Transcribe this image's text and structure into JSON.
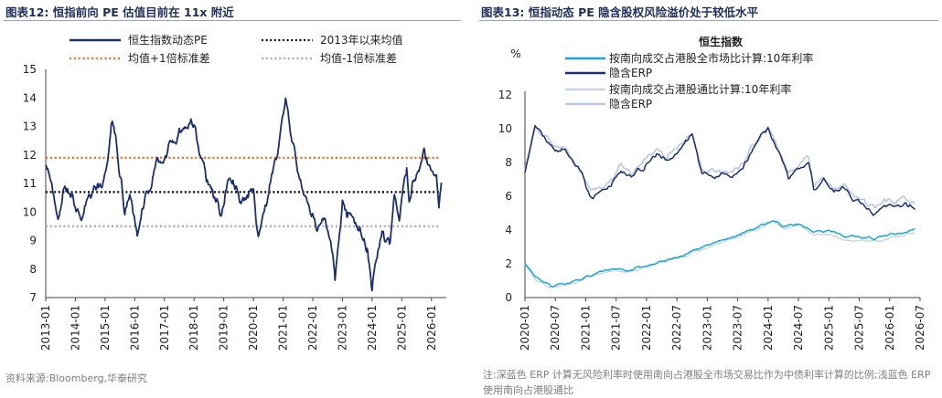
{
  "left": {
    "fig_title": "图表12:  恒指前向 PE 估值目前在 11x 附近",
    "source": "资料来源:Bloomberg,华泰研究"
  },
  "right": {
    "fig_title": "图表13:  恒指动态 PE 隐含股权风险溢价处于较低水平",
    "note": "注:深蓝色 ERP 计算无风险利率时使用南向占港股全市场交易比作为中债利率计算的比例;浅蓝色 ERP 使用南向占港股通比"
  },
  "chart_data": [
    {
      "type": "line",
      "title": "",
      "xlabel": "",
      "ylabel": "",
      "ylim": [
        7,
        15
      ],
      "yticks": [
        7,
        8,
        9,
        10,
        11,
        12,
        13,
        14,
        15
      ],
      "xticks": [
        "2013-01",
        "2014-01",
        "2015-01",
        "2016-01",
        "2017-01",
        "2018-01",
        "2019-01",
        "2020-01",
        "2021-01",
        "2022-01",
        "2023-01",
        "2024-01",
        "2025-01",
        "2026-01"
      ],
      "legend_position": "top",
      "series": [
        {
          "name": "恒生指数动态PE",
          "color": "#1b2f6e",
          "points": [
            [
              "2013-01",
              11.9
            ],
            [
              "2013-03",
              11.2
            ],
            [
              "2013-06",
              9.6
            ],
            [
              "2013-08",
              10.6
            ],
            [
              "2013-10",
              10.9
            ],
            [
              "2014-01",
              10.2
            ],
            [
              "2014-03",
              9.8
            ],
            [
              "2014-06",
              10.4
            ],
            [
              "2014-09",
              10.8
            ],
            [
              "2014-12",
              11.0
            ],
            [
              "2015-02",
              11.6
            ],
            [
              "2015-04",
              13.3
            ],
            [
              "2015-05",
              12.8
            ],
            [
              "2015-07",
              11.3
            ],
            [
              "2015-09",
              10.0
            ],
            [
              "2015-11",
              10.6
            ],
            [
              "2016-02",
              9.1
            ],
            [
              "2016-04",
              10.2
            ],
            [
              "2016-07",
              10.8
            ],
            [
              "2016-10",
              11.8
            ],
            [
              "2016-12",
              11.6
            ],
            [
              "2017-03",
              12.3
            ],
            [
              "2017-06",
              12.6
            ],
            [
              "2017-09",
              12.9
            ],
            [
              "2017-11",
              13.0
            ],
            [
              "2018-01",
              13.2
            ],
            [
              "2018-03",
              12.1
            ],
            [
              "2018-06",
              11.3
            ],
            [
              "2018-09",
              10.6
            ],
            [
              "2018-12",
              9.9
            ],
            [
              "2019-03",
              11.2
            ],
            [
              "2019-05",
              11.0
            ],
            [
              "2019-08",
              10.3
            ],
            [
              "2019-11",
              10.6
            ],
            [
              "2020-01",
              10.8
            ],
            [
              "2020-03",
              9.0
            ],
            [
              "2020-05",
              9.8
            ],
            [
              "2020-08",
              11.1
            ],
            [
              "2020-11",
              12.1
            ],
            [
              "2021-01",
              13.4
            ],
            [
              "2021-02",
              14.0
            ],
            [
              "2021-04",
              12.8
            ],
            [
              "2021-07",
              11.5
            ],
            [
              "2021-10",
              10.4
            ],
            [
              "2021-12",
              10.1
            ],
            [
              "2022-03",
              9.3
            ],
            [
              "2022-06",
              9.8
            ],
            [
              "2022-08",
              9.1
            ],
            [
              "2022-10",
              7.6
            ],
            [
              "2022-12",
              9.3
            ],
            [
              "2023-01",
              10.4
            ],
            [
              "2023-03",
              9.8
            ],
            [
              "2023-06",
              9.7
            ],
            [
              "2023-09",
              9.0
            ],
            [
              "2023-11",
              8.6
            ],
            [
              "2024-01",
              7.4
            ],
            [
              "2024-02",
              7.9
            ],
            [
              "2024-05",
              9.3
            ],
            [
              "2024-08",
              8.8
            ],
            [
              "2024-10",
              10.4
            ],
            [
              "2024-12",
              9.8
            ],
            [
              "2025-03",
              11.5
            ],
            [
              "2025-04",
              10.4
            ],
            [
              "2025-07",
              11.4
            ],
            [
              "2025-10",
              12.2
            ],
            [
              "2025-12",
              11.6
            ],
            [
              "2026-03",
              11.4
            ],
            [
              "2026-04",
              10.1
            ],
            [
              "2026-05",
              11.0
            ]
          ]
        },
        {
          "name": "2013年以来均值",
          "color": "#000000",
          "value": 10.7
        },
        {
          "name": "均值+1倍标准差",
          "color": "#e8793a",
          "value": 11.9
        },
        {
          "name": "均值-1倍标准差",
          "color": "#b3b3b3",
          "value": 9.5
        }
      ]
    },
    {
      "type": "line",
      "title": "恒生指数",
      "xlabel": "",
      "ylabel": "%",
      "ylim": [
        0,
        12
      ],
      "yticks": [
        0,
        2,
        4,
        6,
        8,
        10,
        12
      ],
      "xticks": [
        "2020-01",
        "2020-07",
        "2021-01",
        "2021-07",
        "2022-01",
        "2022-07",
        "2023-01",
        "2023-07",
        "2024-01",
        "2024-07",
        "2025-01",
        "2025-07",
        "2026-01",
        "2026-07"
      ],
      "legend_position": "top",
      "series": [
        {
          "name": "按南向成交占港股全市场比计算:10年利率",
          "color": "#1ba6d8",
          "points": [
            [
              "2020-01",
              2.0
            ],
            [
              "2020-03",
              1.2
            ],
            [
              "2020-06",
              0.7
            ],
            [
              "2020-09",
              0.8
            ],
            [
              "2020-12",
              1.1
            ],
            [
              "2021-03",
              1.4
            ],
            [
              "2021-06",
              1.7
            ],
            [
              "2021-09",
              1.6
            ],
            [
              "2021-12",
              1.8
            ],
            [
              "2022-03",
              2.1
            ],
            [
              "2022-06",
              2.3
            ],
            [
              "2022-09",
              2.6
            ],
            [
              "2022-12",
              3.0
            ],
            [
              "2023-03",
              3.3
            ],
            [
              "2023-06",
              3.6
            ],
            [
              "2023-09",
              3.9
            ],
            [
              "2023-12",
              4.3
            ],
            [
              "2024-02",
              4.6
            ],
            [
              "2024-04",
              4.2
            ],
            [
              "2024-07",
              4.4
            ],
            [
              "2024-10",
              3.9
            ],
            [
              "2025-01",
              4.0
            ],
            [
              "2025-04",
              3.6
            ],
            [
              "2025-07",
              3.6
            ],
            [
              "2025-10",
              3.5
            ],
            [
              "2026-01",
              3.7
            ],
            [
              "2026-04",
              3.9
            ],
            [
              "2026-06",
              4.0
            ]
          ]
        },
        {
          "name": "隐含ERP",
          "color": "#1b2f6e",
          "points": [
            [
              "2020-01",
              7.5
            ],
            [
              "2020-02",
              8.6
            ],
            [
              "2020-03",
              10.3
            ],
            [
              "2020-05",
              9.3
            ],
            [
              "2020-07",
              8.7
            ],
            [
              "2020-09",
              8.6
            ],
            [
              "2020-11",
              8.0
            ],
            [
              "2021-01",
              6.7
            ],
            [
              "2021-02",
              6.0
            ],
            [
              "2021-04",
              6.4
            ],
            [
              "2021-06",
              6.7
            ],
            [
              "2021-08",
              7.5
            ],
            [
              "2021-10",
              7.2
            ],
            [
              "2021-12",
              7.6
            ],
            [
              "2022-03",
              8.5
            ],
            [
              "2022-05",
              8.1
            ],
            [
              "2022-07",
              8.6
            ],
            [
              "2022-10",
              9.6
            ],
            [
              "2022-12",
              7.3
            ],
            [
              "2023-02",
              7.2
            ],
            [
              "2023-04",
              7.3
            ],
            [
              "2023-06",
              7.1
            ],
            [
              "2023-09",
              8.2
            ],
            [
              "2023-11",
              9.3
            ],
            [
              "2024-01",
              10.1
            ],
            [
              "2024-03",
              8.6
            ],
            [
              "2024-05",
              7.2
            ],
            [
              "2024-07",
              7.6
            ],
            [
              "2024-09",
              8.1
            ],
            [
              "2024-10",
              6.4
            ],
            [
              "2024-12",
              6.9
            ],
            [
              "2025-02",
              6.1
            ],
            [
              "2025-04",
              6.7
            ],
            [
              "2025-06",
              5.7
            ],
            [
              "2025-08",
              5.4
            ],
            [
              "2025-10",
              5.0
            ],
            [
              "2025-12",
              5.6
            ],
            [
              "2026-02",
              5.2
            ],
            [
              "2026-04",
              5.7
            ],
            [
              "2026-06",
              5.3
            ]
          ]
        },
        {
          "name": "按南向成交占港股通比计算:10年利率",
          "color": "#c9d3e6",
          "points": [
            [
              "2020-01",
              2.0
            ],
            [
              "2020-03",
              1.0
            ],
            [
              "2020-06",
              0.6
            ],
            [
              "2020-09",
              0.7
            ],
            [
              "2020-12",
              1.0
            ],
            [
              "2021-03",
              1.3
            ],
            [
              "2021-06",
              1.6
            ],
            [
              "2021-09",
              1.5
            ],
            [
              "2021-12",
              1.7
            ],
            [
              "2022-03",
              2.0
            ],
            [
              "2022-06",
              2.2
            ],
            [
              "2022-09",
              2.5
            ],
            [
              "2022-12",
              2.9
            ],
            [
              "2023-03",
              3.2
            ],
            [
              "2023-06",
              3.5
            ],
            [
              "2023-09",
              3.8
            ],
            [
              "2023-12",
              4.2
            ],
            [
              "2024-02",
              4.5
            ],
            [
              "2024-04",
              4.1
            ],
            [
              "2024-07",
              4.3
            ],
            [
              "2024-10",
              3.7
            ],
            [
              "2025-01",
              3.8
            ],
            [
              "2025-04",
              3.4
            ],
            [
              "2025-07",
              3.4
            ],
            [
              "2025-10",
              3.3
            ],
            [
              "2026-01",
              3.5
            ],
            [
              "2026-04",
              3.7
            ],
            [
              "2026-06",
              3.8
            ]
          ]
        },
        {
          "name": "隐含ERP",
          "color": "#b8c7e3",
          "points": [
            [
              "2020-01",
              7.6
            ],
            [
              "2020-02",
              8.7
            ],
            [
              "2020-03",
              10.1
            ],
            [
              "2020-05",
              9.5
            ],
            [
              "2020-07",
              8.9
            ],
            [
              "2020-09",
              8.7
            ],
            [
              "2020-11",
              8.1
            ],
            [
              "2021-01",
              6.8
            ],
            [
              "2021-02",
              6.2
            ],
            [
              "2021-04",
              6.5
            ],
            [
              "2021-06",
              6.9
            ],
            [
              "2021-08",
              7.7
            ],
            [
              "2021-10",
              7.4
            ],
            [
              "2021-12",
              7.8
            ],
            [
              "2022-03",
              8.7
            ],
            [
              "2022-05",
              8.3
            ],
            [
              "2022-07",
              8.8
            ],
            [
              "2022-10",
              9.7
            ],
            [
              "2022-12",
              7.5
            ],
            [
              "2023-02",
              7.4
            ],
            [
              "2023-04",
              7.5
            ],
            [
              "2023-06",
              7.3
            ],
            [
              "2023-09",
              8.4
            ],
            [
              "2023-11",
              9.5
            ],
            [
              "2024-01",
              10.2
            ],
            [
              "2024-03",
              8.8
            ],
            [
              "2024-05",
              7.4
            ],
            [
              "2024-07",
              7.8
            ],
            [
              "2024-09",
              8.3
            ],
            [
              "2024-10",
              6.7
            ],
            [
              "2024-12",
              7.1
            ],
            [
              "2025-02",
              6.3
            ],
            [
              "2025-04",
              6.9
            ],
            [
              "2025-06",
              6.0
            ],
            [
              "2025-08",
              5.7
            ],
            [
              "2025-10",
              5.3
            ],
            [
              "2025-12",
              5.9
            ],
            [
              "2026-02",
              5.5
            ],
            [
              "2026-04",
              6.0
            ],
            [
              "2026-06",
              5.6
            ]
          ]
        }
      ]
    }
  ]
}
